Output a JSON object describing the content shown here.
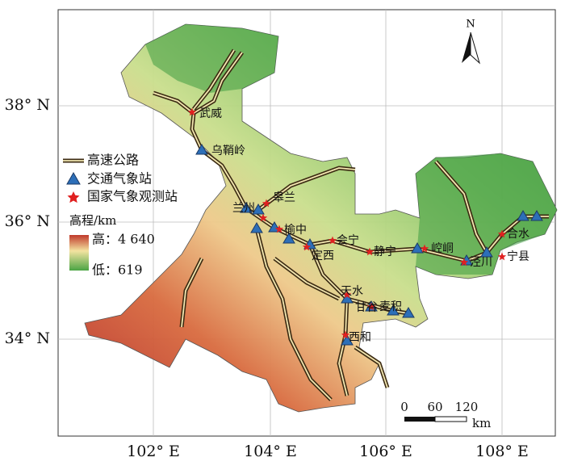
{
  "map": {
    "lat_labels": [
      "38° N",
      "36° N",
      "34° N"
    ],
    "lon_labels": [
      "102° E",
      "104° E",
      "106° E",
      "108° E"
    ],
    "north": "N",
    "legend": {
      "road": "高速公路",
      "traffic_station": "交通气象站",
      "national_station": "国家气象观测站",
      "elevation_title": "高程/km",
      "high": "高：4 640",
      "low": "低：619"
    },
    "scale_bar": {
      "ticks": [
        "0",
        "60",
        "120"
      ],
      "unit": "km"
    },
    "places": [
      "武威",
      "乌鞘岭",
      "皋兰",
      "兰州",
      "榆中",
      "定西",
      "会宁",
      "静宁",
      "崆峒",
      "泾川",
      "合水",
      "宁县",
      "天水",
      "甘谷",
      "麦积",
      "西和"
    ]
  }
}
